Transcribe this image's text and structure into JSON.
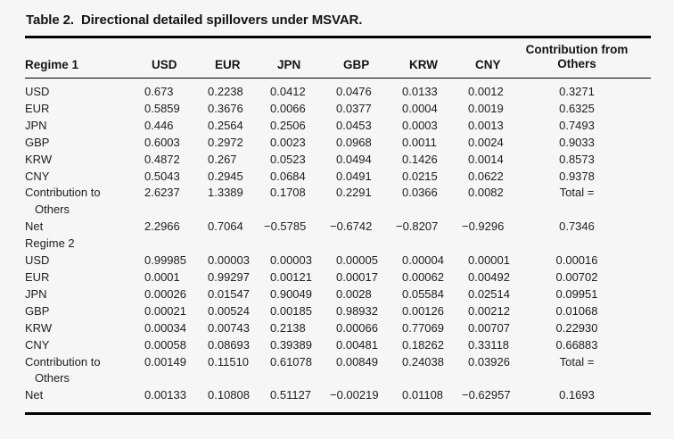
{
  "title": {
    "label": "Table 2.",
    "text": "Directional detailed spillovers under MSVAR."
  },
  "table": {
    "header": {
      "first": "Regime 1",
      "cols": [
        "USD",
        "EUR",
        "JPN",
        "GBP",
        "KRW",
        "CNY"
      ],
      "last": [
        "Contribution from",
        "Others"
      ]
    },
    "sections": [
      {
        "rows": [
          {
            "label": "USD",
            "values": [
              "0.673",
              "0.2238",
              "0.0412",
              "0.0476",
              "0.0133",
              "0.0012"
            ],
            "last": "0.3271"
          },
          {
            "label": "EUR",
            "values": [
              "0.5859",
              "0.3676",
              "0.0066",
              "0.0377",
              "0.0004",
              "0.0019"
            ],
            "last": "0.6325"
          },
          {
            "label": "JPN",
            "values": [
              "0.446",
              "0.2564",
              "0.2506",
              "0.0453",
              "0.0003",
              "0.0013"
            ],
            "last": "0.7493"
          },
          {
            "label": "GBP",
            "values": [
              "0.6003",
              "0.2972",
              "0.0023",
              "0.0968",
              "0.0011",
              "0.0024"
            ],
            "last": "0.9033"
          },
          {
            "label": "KRW",
            "values": [
              "0.4872",
              "0.267",
              "0.0523",
              "0.0494",
              "0.1426",
              "0.0014"
            ],
            "last": "0.8573"
          },
          {
            "label": "CNY",
            "values": [
              "0.5043",
              "0.2945",
              "0.0684",
              "0.0491",
              "0.0215",
              "0.0622"
            ],
            "last": "0.9378"
          },
          {
            "label": "Contribution to",
            "label2": "Others",
            "values": [
              "2.6237",
              "1.3389",
              "0.1708",
              "0.2291",
              "0.0366",
              "0.0082"
            ],
            "last": "Total ="
          },
          {
            "label": "Net",
            "values": [
              "2.2966",
              "0.7064",
              "−0.5785",
              "−0.6742",
              "−0.8207",
              "−0.9296"
            ],
            "last": "0.7346"
          }
        ]
      },
      {
        "section_label": "Regime 2",
        "rows": [
          {
            "label": "USD",
            "values": [
              "0.99985",
              "0.00003",
              "0.00003",
              "0.00005",
              "0.00004",
              "0.00001"
            ],
            "last": "0.00016"
          },
          {
            "label": "EUR",
            "values": [
              "0.0001",
              "0.99297",
              "0.00121",
              "0.00017",
              "0.00062",
              "0.00492"
            ],
            "last": "0.00702"
          },
          {
            "label": "JPN",
            "values": [
              "0.00026",
              "0.01547",
              "0.90049",
              "0.0028",
              "0.05584",
              "0.02514"
            ],
            "last": "0.09951"
          },
          {
            "label": "GBP",
            "values": [
              "0.00021",
              "0.00524",
              "0.00185",
              "0.98932",
              "0.00126",
              "0.00212"
            ],
            "last": "0.01068"
          },
          {
            "label": "KRW",
            "values": [
              "0.00034",
              "0.00743",
              "0.2138",
              "0.00066",
              "0.77069",
              "0.00707"
            ],
            "last": "0.22930"
          },
          {
            "label": "CNY",
            "values": [
              "0.00058",
              "0.08693",
              "0.39389",
              "0.00481",
              "0.18262",
              "0.33118"
            ],
            "last": "0.66883"
          },
          {
            "label": "Contribution to",
            "label2": "Others",
            "values": [
              "0.00149",
              "0.11510",
              "0.61078",
              "0.00849",
              "0.24038",
              "0.03926"
            ],
            "last": "Total ="
          },
          {
            "label": "Net",
            "values": [
              "0.00133",
              "0.10808",
              "0.51127",
              "−0.00219",
              "0.01108",
              "−0.62957"
            ],
            "last": "0.1693"
          }
        ]
      }
    ]
  }
}
